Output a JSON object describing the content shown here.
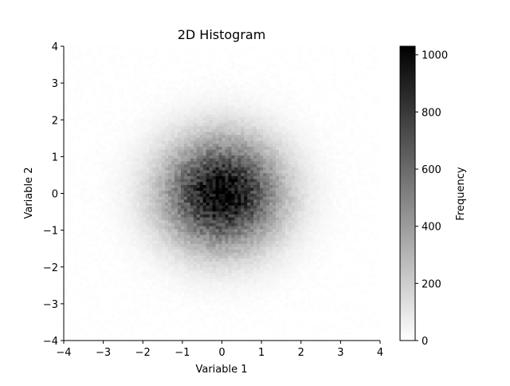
{
  "chart_data": {
    "type": "heatmap",
    "title": "2D Histogram",
    "xlabel": "Variable 1",
    "ylabel": "Variable 2",
    "xlim": [
      -4,
      4
    ],
    "ylim": [
      -4,
      4
    ],
    "x_ticks": [
      -4,
      -3,
      -2,
      -1,
      0,
      1,
      2,
      3,
      4
    ],
    "y_ticks": [
      -4,
      -3,
      -2,
      -1,
      0,
      1,
      2,
      3,
      4
    ],
    "x_tick_labels": [
      "−4",
      "−3",
      "−2",
      "−1",
      "0",
      "1",
      "2",
      "3",
      "4"
    ],
    "y_tick_labels": [
      "−4",
      "−3",
      "−2",
      "−1",
      "0",
      "1",
      "2",
      "3",
      "4"
    ],
    "bins": 100,
    "distribution": {
      "kind": "bivariate normal",
      "x_mean": 0,
      "y_mean": 0,
      "x_std": 1,
      "y_std": 1,
      "peak_count": 1020
    },
    "grid": false,
    "colormap": "gray_r",
    "colormap_low": "#ffffff",
    "colormap_high": "#000000",
    "colorbar": {
      "label": "Frequency",
      "range": [
        0,
        1030
      ],
      "ticks": [
        0,
        200,
        400,
        600,
        800,
        1000
      ],
      "tick_labels": [
        "0",
        "200",
        "400",
        "600",
        "800",
        "1000"
      ]
    }
  }
}
